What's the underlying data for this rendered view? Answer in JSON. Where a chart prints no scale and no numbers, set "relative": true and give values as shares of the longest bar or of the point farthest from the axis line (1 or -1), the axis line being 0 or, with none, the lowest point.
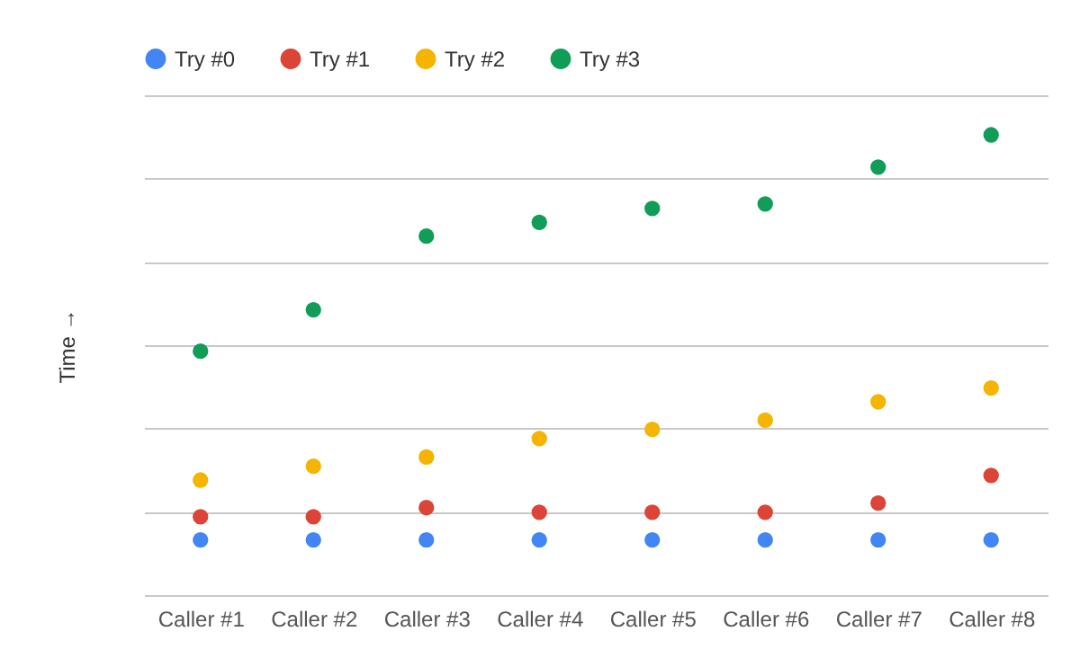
{
  "chart_data": {
    "type": "scatter",
    "ylabel": "Time →",
    "relative": true,
    "grid": "y",
    "legend": "top",
    "marker": "circle",
    "categories": [
      "Caller #1",
      "Caller #2",
      "Caller #3",
      "Caller #4",
      "Caller #5",
      "Caller #6",
      "Caller #7",
      "Caller #8"
    ],
    "series": [
      {
        "name": "Try #0",
        "color": "#4285f4",
        "values": [
          0.12,
          0.12,
          0.12,
          0.12,
          0.12,
          0.12,
          0.12,
          0.12
        ]
      },
      {
        "name": "Try #1",
        "color": "#db4437",
        "values": [
          0.17,
          0.17,
          0.19,
          0.18,
          0.18,
          0.18,
          0.2,
          0.26
        ]
      },
      {
        "name": "Try #2",
        "color": "#f4b400",
        "values": [
          0.25,
          0.28,
          0.3,
          0.34,
          0.36,
          0.38,
          0.42,
          0.45
        ]
      },
      {
        "name": "Try #3",
        "color": "#0f9d58",
        "values": [
          0.53,
          0.62,
          0.78,
          0.81,
          0.84,
          0.85,
          0.93,
          1
        ]
      }
    ]
  }
}
